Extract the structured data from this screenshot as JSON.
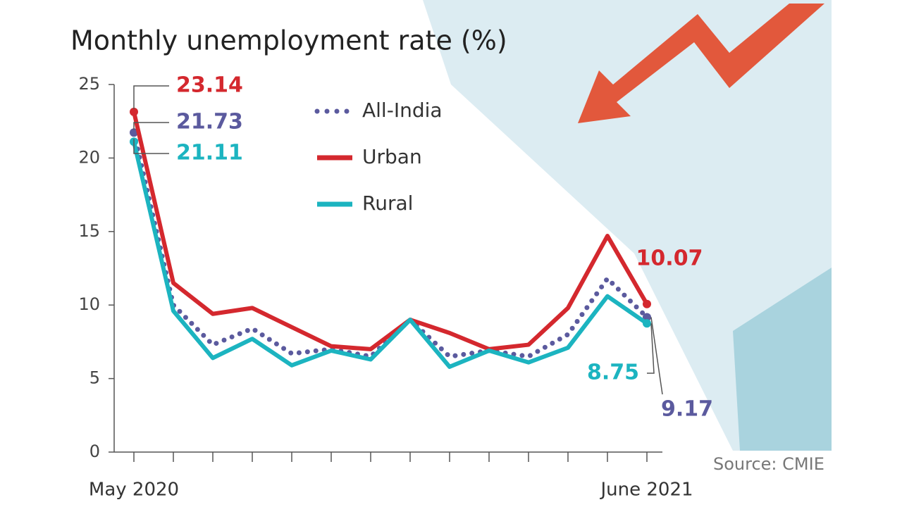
{
  "chart_data": {
    "type": "line",
    "title": "Monthly unemployment rate (%)",
    "categories": [
      "May 2020",
      null,
      null,
      null,
      null,
      null,
      null,
      null,
      null,
      null,
      null,
      null,
      null,
      "June 2021"
    ],
    "series": [
      {
        "name": "All-India",
        "color": "#5b5a9e",
        "dash": "dotted",
        "values": [
          21.73,
          10.0,
          7.3,
          8.4,
          6.7,
          7.0,
          6.5,
          9.0,
          6.5,
          6.9,
          6.5,
          8.0,
          11.8,
          9.17
        ]
      },
      {
        "name": "Urban",
        "color": "#d4282e",
        "values": [
          23.14,
          11.5,
          9.4,
          9.8,
          8.5,
          7.2,
          7.0,
          9.0,
          8.1,
          7.0,
          7.3,
          9.8,
          14.7,
          10.07
        ]
      },
      {
        "name": "Rural",
        "color": "#1cb4c0",
        "values": [
          21.11,
          9.6,
          6.4,
          7.7,
          5.9,
          6.9,
          6.3,
          9.0,
          5.8,
          6.9,
          6.1,
          7.1,
          10.6,
          8.75
        ]
      }
    ],
    "ylim": [
      0,
      25
    ],
    "yticks": [
      0,
      5,
      10,
      15,
      20,
      25
    ],
    "source": "Source: CMIE"
  }
}
